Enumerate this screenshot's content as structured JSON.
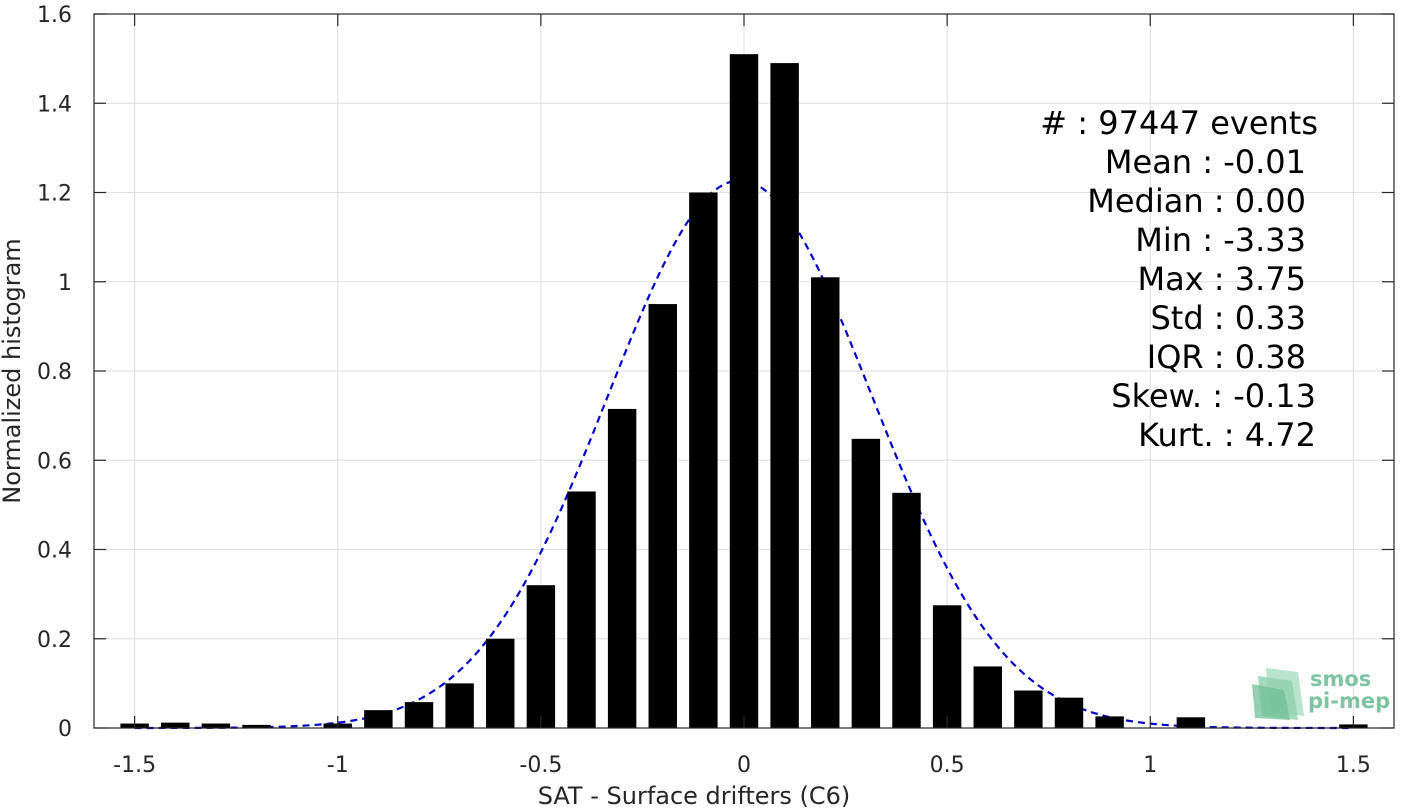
{
  "chart_data": {
    "type": "bar",
    "xlabel": "SAT - Surface drifters (C6)",
    "ylabel": "Normalized histogram",
    "xlim": [
      -1.6,
      1.6
    ],
    "ylim": [
      0,
      1.6
    ],
    "xticks": [
      -1.5,
      -1,
      -0.5,
      0,
      0.5,
      1,
      1.5
    ],
    "xtick_labels": [
      "-1.5",
      "-1",
      "-0.5",
      "0",
      "0.5",
      "1",
      "1.5"
    ],
    "yticks": [
      0,
      0.2,
      0.4,
      0.6,
      0.8,
      1,
      1.2,
      1.4,
      1.6
    ],
    "ytick_labels": [
      "0",
      "0.2",
      "0.4",
      "0.6",
      "0.8",
      "1",
      "1.2",
      "1.4",
      "1.6"
    ],
    "grid": true,
    "bar_width": 0.07,
    "bar_color": "#000000",
    "fit_color": "#0000cc",
    "x": [
      -1.5,
      -1.4,
      -1.3,
      -1.2,
      -1.1,
      -1.0,
      -0.9,
      -0.8,
      -0.7,
      -0.6,
      -0.5,
      -0.4,
      -0.3,
      -0.2,
      -0.1,
      0.0,
      0.1,
      0.2,
      0.3,
      0.4,
      0.5,
      0.6,
      0.7,
      0.8,
      0.9,
      1.0,
      1.1,
      1.2,
      1.3,
      1.4,
      1.5
    ],
    "values": [
      0.01,
      0.012,
      0.01,
      0.007,
      0.0,
      0.01,
      0.04,
      0.058,
      0.1,
      0.2,
      0.32,
      0.53,
      0.715,
      0.95,
      1.2,
      1.51,
      1.49,
      1.01,
      0.648,
      0.527,
      0.275,
      0.138,
      0.084,
      0.068,
      0.026,
      0.0,
      0.024,
      0.0,
      0.0,
      0.0,
      0.008
    ],
    "fit": {
      "type": "gaussian",
      "style": "dashed",
      "mean": -0.01,
      "std": 0.325,
      "peak": 1.227
    },
    "annotations": [
      "#  : 97447 events",
      "Mean : -0.01",
      "Median : 0.00",
      "Min : -3.33",
      "Max : 3.75",
      "Std : 0.33",
      "IQR : 0.38",
      "Skew. : -0.13",
      "Kurt. : 4.72"
    ]
  },
  "logo": {
    "name": "smos-pi-mep-logo",
    "line1": "smos",
    "line2": "pi-mep",
    "color": "#7fc4a2"
  }
}
